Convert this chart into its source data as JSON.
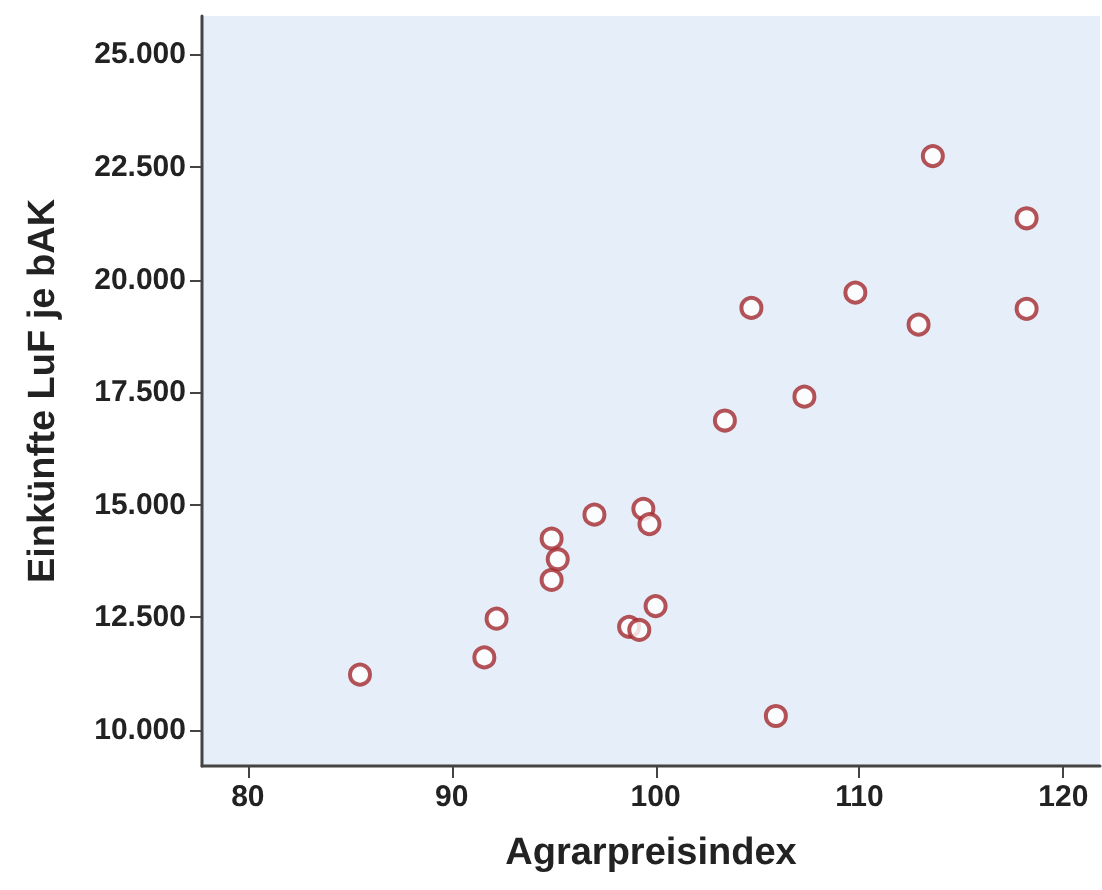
{
  "chart_data": {
    "type": "scatter",
    "xlabel": "Agrarpreisindex",
    "ylabel": "Einkünfte LuF je bAK",
    "marker": "circle",
    "grid": false,
    "x": [
      85.5,
      91.6,
      92.2,
      94.9,
      95.2,
      94.9,
      97.0,
      99.4,
      99.7,
      100.0,
      98.7,
      99.2,
      105.9,
      113.6,
      118.2,
      109.8,
      104.7,
      112.9,
      118.2,
      107.3,
      103.4
    ],
    "series": [
      {
        "color": "#a3292e",
        "values": [
          11230,
          11610,
          12470,
          13330,
          13790,
          14250,
          14780,
          14910,
          14570,
          12750,
          12290,
          12220,
          10310,
          22740,
          21360,
          19710,
          19370,
          19000,
          19350,
          17400,
          16870
        ]
      }
    ],
    "xlim": [
      77.75,
      121.8
    ],
    "xticks": [
      80,
      90,
      100,
      110,
      120
    ],
    "ylim": [
      9200,
      25850
    ],
    "yticks": [
      {
        "value": 10000,
        "label": "10.000"
      },
      {
        "value": 12500,
        "label": "12.500"
      },
      {
        "value": 15000,
        "label": "15.000"
      },
      {
        "value": 17500,
        "label": "17.500"
      },
      {
        "value": 20000,
        "label": "20.000"
      },
      {
        "value": 22500,
        "label": "22.500"
      },
      {
        "value": 25000,
        "label": "25.000"
      }
    ]
  }
}
